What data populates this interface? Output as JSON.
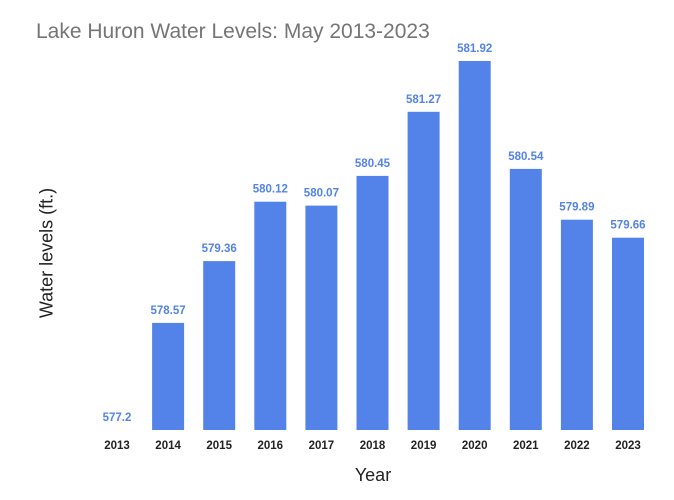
{
  "chart_data": {
    "type": "bar",
    "title": "Lake Huron Water Levels: May 2013-2023",
    "xlabel": "Year",
    "ylabel": "Water levels (ft.)",
    "categories": [
      "2013",
      "2014",
      "2015",
      "2016",
      "2017",
      "2018",
      "2019",
      "2020",
      "2021",
      "2022",
      "2023"
    ],
    "values": [
      577.2,
      578.57,
      579.36,
      580.12,
      580.07,
      580.45,
      581.27,
      581.92,
      580.54,
      579.89,
      579.66
    ],
    "data_labels": [
      "577.2",
      "578.57",
      "579.36",
      "580.12",
      "580.07",
      "580.45",
      "581.27",
      "581.92",
      "580.54",
      "579.89",
      "579.66"
    ],
    "ylim": [
      577.2,
      581.92
    ],
    "grid": false,
    "legend": "none",
    "colors": {
      "bar": "#5383e8",
      "data_label": "#5383e8",
      "title": "#757575",
      "axis_text": "#222222"
    }
  }
}
